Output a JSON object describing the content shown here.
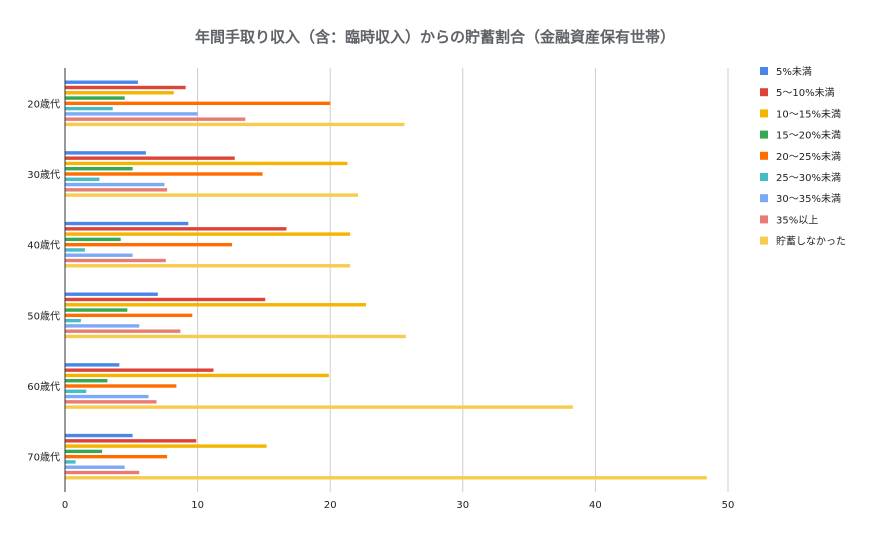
{
  "chart_data": {
    "type": "bar",
    "orientation": "horizontal",
    "title": "年間手取り収入（含：臨時収入）からの貯蓄割合（金融資産保有世帯）",
    "xlabel": "",
    "ylabel": "",
    "xlim": [
      0,
      50
    ],
    "xticks": [
      "0",
      "10",
      "20",
      "30",
      "40",
      "50"
    ],
    "grid": true,
    "legend_position": "right",
    "categories": [
      "20歳代",
      "30歳代",
      "40歳代",
      "50歳代",
      "60歳代",
      "70歳代"
    ],
    "series": [
      {
        "name": "5%未満",
        "color": "#4a86e8",
        "values": [
          5.5,
          6.1,
          9.3,
          7.0,
          4.1,
          5.1
        ]
      },
      {
        "name": "5～10%未満",
        "color": "#db4437",
        "values": [
          9.1,
          12.8,
          16.7,
          15.1,
          11.2,
          9.9
        ]
      },
      {
        "name": "10～15%未満",
        "color": "#f4b400",
        "values": [
          8.2,
          21.3,
          21.5,
          22.7,
          19.9,
          15.2
        ]
      },
      {
        "name": "15～20%未満",
        "color": "#34a853",
        "values": [
          4.5,
          5.1,
          4.2,
          4.7,
          3.2,
          2.8
        ]
      },
      {
        "name": "20～25%未満",
        "color": "#ff6d01",
        "values": [
          20.0,
          14.9,
          12.6,
          9.6,
          8.4,
          7.7
        ]
      },
      {
        "name": "25～30%未満",
        "color": "#46bdc6",
        "values": [
          3.6,
          2.6,
          1.5,
          1.2,
          1.6,
          0.8
        ]
      },
      {
        "name": "30～35%未満",
        "color": "#7baaf7",
        "values": [
          10.0,
          7.5,
          5.1,
          5.6,
          6.3,
          4.5
        ]
      },
      {
        "name": "35%以上",
        "color": "#e67c73",
        "values": [
          13.6,
          7.7,
          7.6,
          8.7,
          6.9,
          5.6
        ]
      },
      {
        "name": "貯蓄しなかった",
        "color": "#f7cb4d",
        "values": [
          25.6,
          22.1,
          21.5,
          25.7,
          38.3,
          48.4
        ]
      }
    ]
  }
}
